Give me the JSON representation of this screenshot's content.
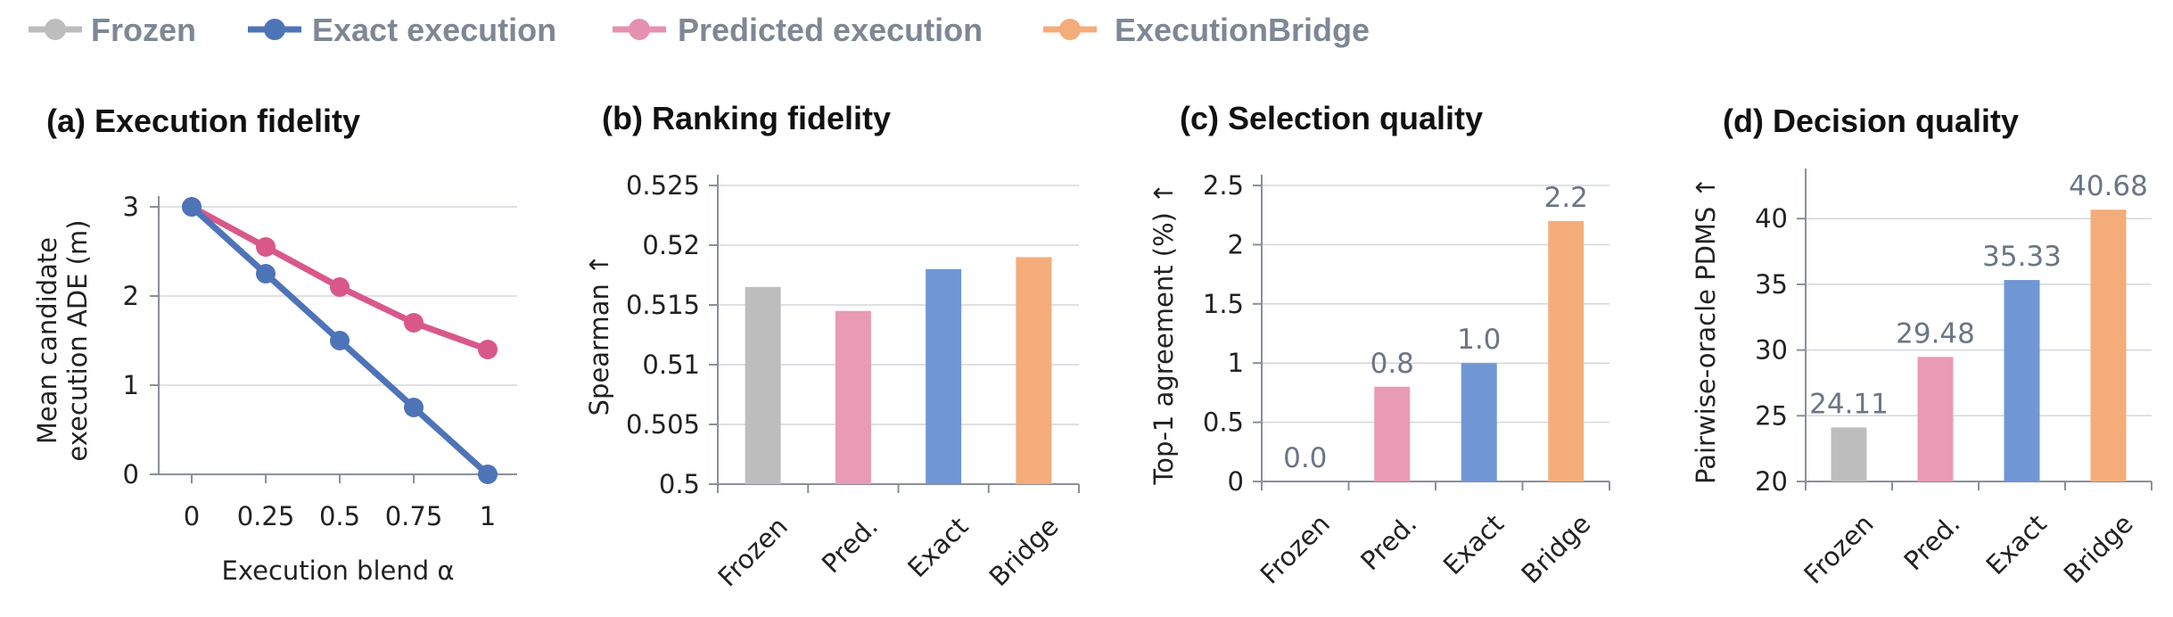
{
  "legend": [
    {
      "label": "Frozen",
      "color": "#bdbdbd"
    },
    {
      "label": "Exact execution",
      "color": "#4e74b8"
    },
    {
      "label": "Predicted execution",
      "color": "#e691b0"
    },
    {
      "label": "ExecutionBridge",
      "color": "#f4ad7a"
    }
  ],
  "chart_data": [
    {
      "type": "line",
      "title": "(a) Execution fidelity",
      "xlabel": "Execution blend α",
      "ylabel": "Mean candidate execution ADE (m)",
      "ylabel_lines": [
        "Mean candidate",
        "execution ADE (m)"
      ],
      "x": [
        0,
        0.25,
        0.5,
        0.75,
        1
      ],
      "x_tick_labels": [
        "0",
        "0.25",
        "0.5",
        "0.75",
        "1"
      ],
      "ylim": [
        0,
        3
      ],
      "y_ticks": [
        0,
        1,
        2,
        3
      ],
      "y_tick_labels": [
        "0",
        "1",
        "2",
        "3"
      ],
      "grid": true,
      "series": [
        {
          "name": "Predicted execution",
          "color": "#d9588a",
          "values": [
            3.0,
            2.55,
            2.1,
            1.7,
            1.4
          ]
        },
        {
          "name": "Exact execution",
          "color": "#4e74b8",
          "values": [
            3.0,
            2.25,
            1.5,
            0.75,
            0.0
          ]
        }
      ]
    },
    {
      "type": "bar",
      "title": "(b) Ranking fidelity",
      "ylabel": "Spearman ↑",
      "categories": [
        "Frozen",
        "Pred.",
        "Exact",
        "Bridge"
      ],
      "values": [
        0.5165,
        0.5145,
        0.518,
        0.519
      ],
      "colors": [
        "#bdbdbd",
        "#e99ab5",
        "#7097d4",
        "#f4ad7a"
      ],
      "ylim": [
        0.5,
        0.525
      ],
      "y_ticks": [
        0.5,
        0.505,
        0.51,
        0.515,
        0.52,
        0.525
      ],
      "y_tick_labels": [
        "0.5",
        "0.505",
        "0.51",
        "0.515",
        "0.52",
        "0.525"
      ],
      "data_labels": [],
      "grid": true
    },
    {
      "type": "bar",
      "title": "(c) Selection quality",
      "ylabel": "Top-1 agreement (%) ↑",
      "categories": [
        "Frozen",
        "Pred.",
        "Exact",
        "Bridge"
      ],
      "values": [
        0.0,
        0.8,
        1.0,
        2.2
      ],
      "colors": [
        "#bdbdbd",
        "#e99ab5",
        "#7097d4",
        "#f4ad7a"
      ],
      "ylim": [
        0,
        2.5
      ],
      "y_ticks": [
        0,
        0.5,
        1,
        1.5,
        2,
        2.5
      ],
      "y_tick_labels": [
        "0",
        "0.5",
        "1",
        "1.5",
        "2",
        "2.5"
      ],
      "data_labels": [
        "0.0",
        "0.8",
        "1.0",
        "2.2"
      ],
      "grid": true
    },
    {
      "type": "bar",
      "title": "(d) Decision quality",
      "ylabel": "Pairwise-oracle PDMS ↑",
      "categories": [
        "Frozen",
        "Pred.",
        "Exact",
        "Bridge"
      ],
      "values": [
        24.11,
        29.48,
        35.33,
        40.68
      ],
      "colors": [
        "#bdbdbd",
        "#e99ab5",
        "#7097d4",
        "#f4ad7a"
      ],
      "ylim": [
        20,
        43
      ],
      "y_ticks": [
        20,
        25,
        30,
        35,
        40
      ],
      "y_tick_labels": [
        "20",
        "25",
        "30",
        "35",
        "40"
      ],
      "data_labels": [
        "24.11",
        "29.48",
        "35.33",
        "40.68"
      ],
      "grid": true
    }
  ]
}
